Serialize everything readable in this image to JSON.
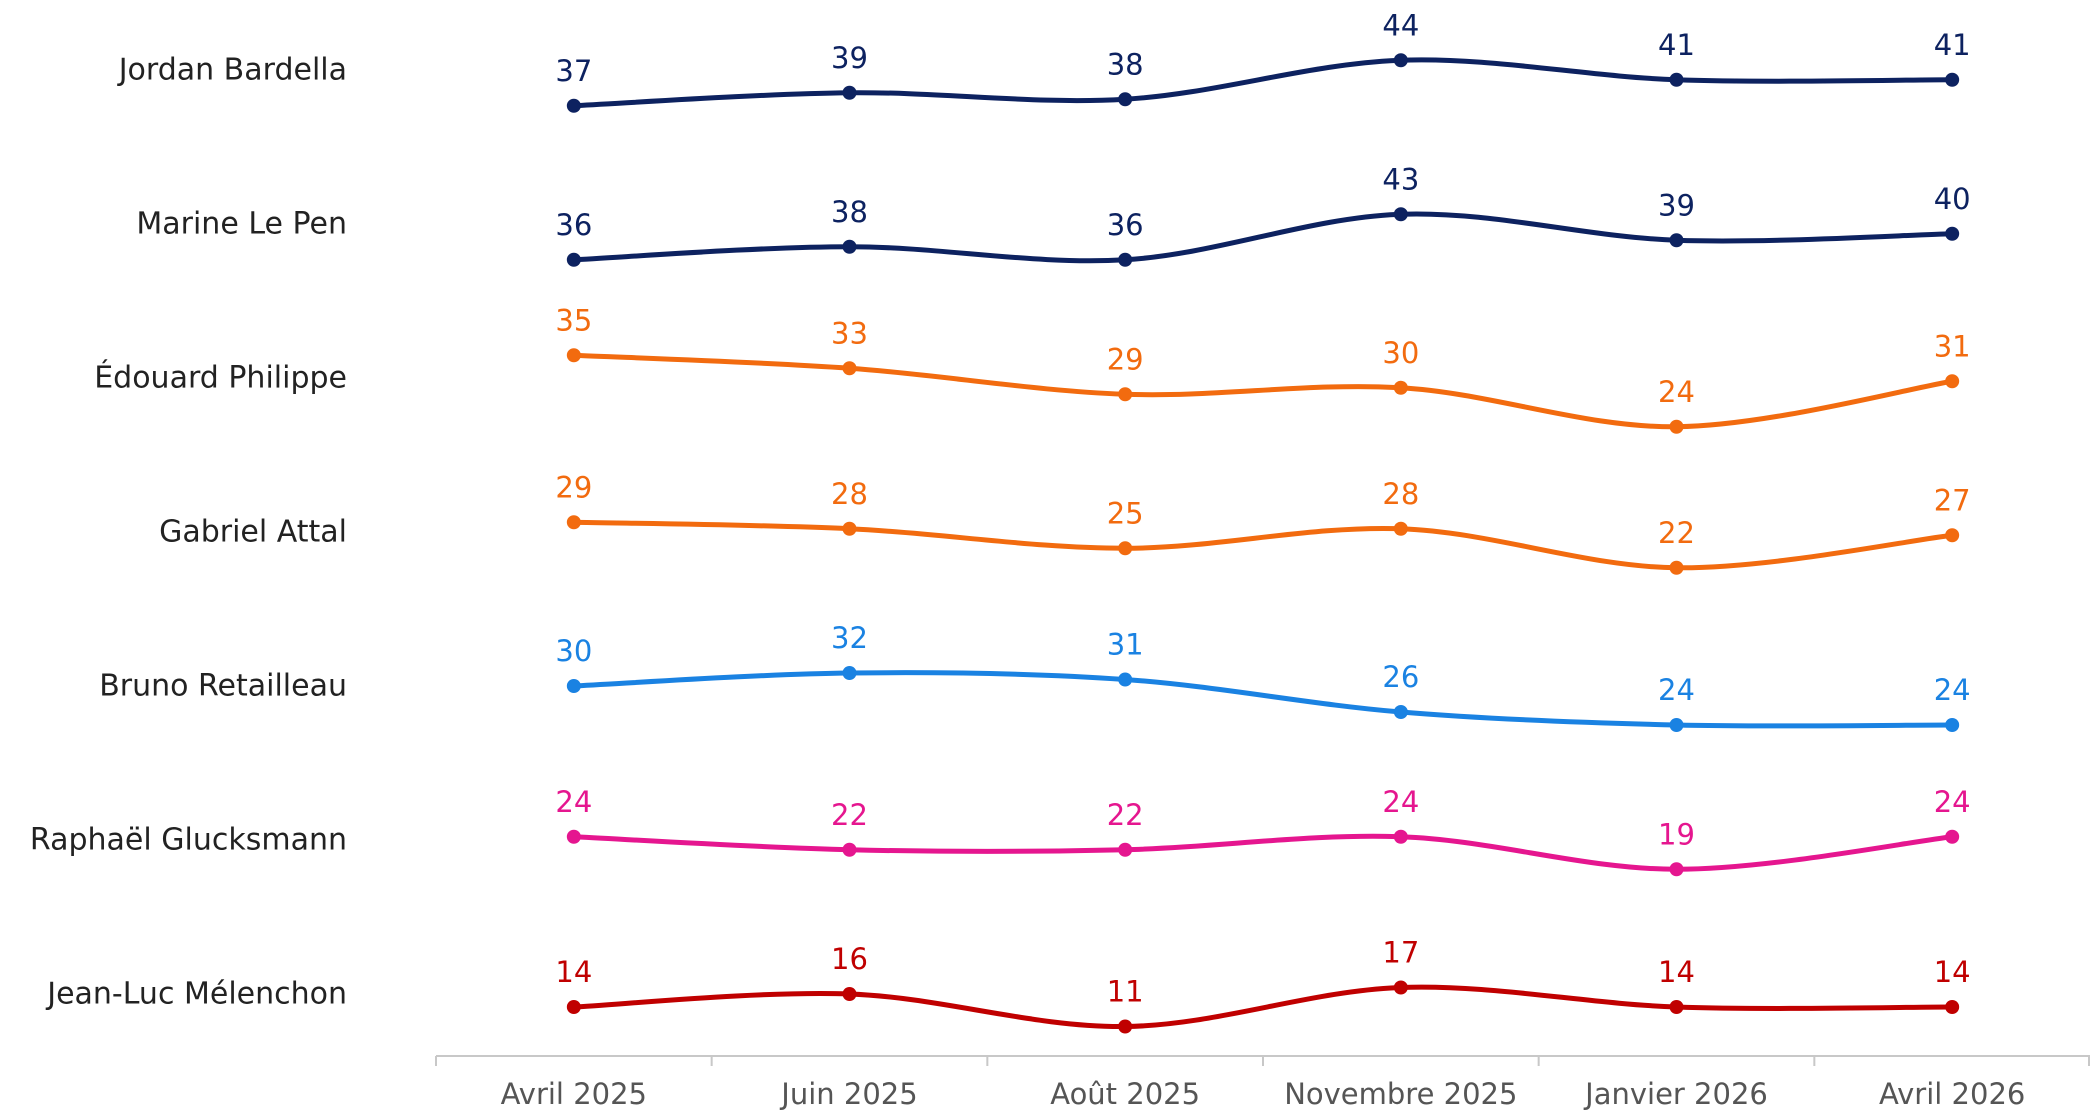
{
  "chart_data": {
    "type": "line",
    "categories": [
      "Avril 2025",
      "Juin 2025",
      "Août 2025",
      "Novembre 2025",
      "Janvier 2026",
      "Avril 2026"
    ],
    "series": [
      {
        "name": "Jordan Bardella",
        "color": "#0d2260",
        "values": [
          37,
          39,
          38,
          44,
          41,
          41
        ]
      },
      {
        "name": "Marine Le Pen",
        "color": "#0d2260",
        "values": [
          36,
          38,
          36,
          43,
          39,
          40
        ]
      },
      {
        "name": "Édouard Philippe",
        "color": "#f26b0f",
        "values": [
          35,
          33,
          29,
          30,
          24,
          31
        ]
      },
      {
        "name": "Gabriel Attal",
        "color": "#f26b0f",
        "values": [
          29,
          28,
          25,
          28,
          22,
          27
        ]
      },
      {
        "name": "Bruno Retailleau",
        "color": "#1a82e2",
        "values": [
          30,
          32,
          31,
          26,
          24,
          24
        ]
      },
      {
        "name": "Raphaël Glucksmann",
        "color": "#e5168f",
        "values": [
          24,
          22,
          22,
          24,
          19,
          24
        ]
      },
      {
        "name": "Jean-Luc Mélenchon",
        "color": "#c00000",
        "values": [
          14,
          16,
          11,
          17,
          14,
          14
        ]
      }
    ]
  }
}
